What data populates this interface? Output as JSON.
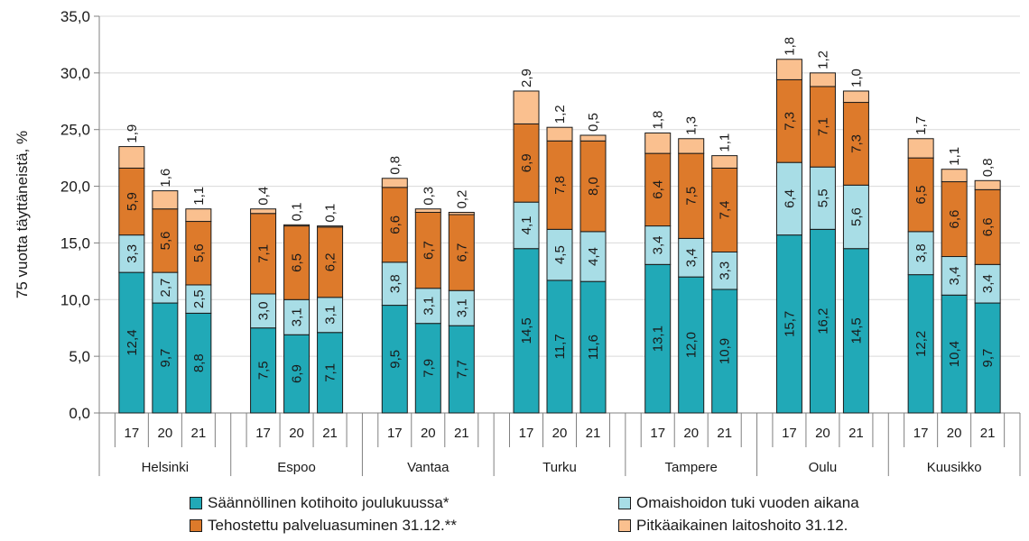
{
  "chart_data": {
    "type": "bar",
    "stacked": true,
    "ylabel": "75 vuotta täyttäneistä, %",
    "ylim": [
      0,
      35
    ],
    "yticks": [
      "0,0",
      "5,0",
      "10,0",
      "15,0",
      "20,0",
      "25,0",
      "30,0",
      "35,0"
    ],
    "grid": "horizontal",
    "legend_position": "bottom",
    "groups": [
      "Helsinki",
      "Espoo",
      "Vantaa",
      "Turku",
      "Tampere",
      "Oulu",
      "Kuusikko"
    ],
    "years": [
      "17",
      "20",
      "21"
    ],
    "series": [
      {
        "name": "Säännöllinen kotihoito joulukuussa*",
        "color": "#21a9b7",
        "values": [
          [
            12.4,
            9.7,
            8.8
          ],
          [
            7.5,
            6.9,
            7.1
          ],
          [
            9.5,
            7.9,
            7.7
          ],
          [
            14.5,
            11.7,
            11.6
          ],
          [
            13.1,
            12.0,
            10.9
          ],
          [
            15.7,
            16.2,
            14.5
          ],
          [
            12.2,
            10.4,
            9.7
          ]
        ],
        "labels": [
          [
            "12,4",
            "9,7",
            "8,8"
          ],
          [
            "7,5",
            "6,9",
            "7,1"
          ],
          [
            "9,5",
            "7,9",
            "7,7"
          ],
          [
            "14,5",
            "11,7",
            "11,6"
          ],
          [
            "13,1",
            "12,0",
            "10,9"
          ],
          [
            "15,7",
            "16,2",
            "14,5"
          ],
          [
            "12,2",
            "10,4",
            "9,7"
          ]
        ]
      },
      {
        "name": "Omaishoidon tuki vuoden aikana",
        "color": "#a8dde6",
        "values": [
          [
            3.3,
            2.7,
            2.5
          ],
          [
            3.0,
            3.1,
            3.1
          ],
          [
            3.8,
            3.1,
            3.1
          ],
          [
            4.1,
            4.5,
            4.4
          ],
          [
            3.4,
            3.4,
            3.3
          ],
          [
            6.4,
            5.5,
            5.6
          ],
          [
            3.8,
            3.4,
            3.4
          ]
        ],
        "labels": [
          [
            "3,3",
            "2,7",
            "2,5"
          ],
          [
            "3,0",
            "3,1",
            "3,1"
          ],
          [
            "3,8",
            "3,1",
            "3,1"
          ],
          [
            "4,1",
            "4,5",
            "4,4"
          ],
          [
            "3,4",
            "3,4",
            "3,3"
          ],
          [
            "6,4",
            "5,5",
            "5,6"
          ],
          [
            "3,8",
            "3,4",
            "3,4"
          ]
        ]
      },
      {
        "name": "Tehostettu palveluasuminen 31.12.**",
        "color": "#dd7a2b",
        "values": [
          [
            5.9,
            5.6,
            5.6
          ],
          [
            7.1,
            6.5,
            6.2
          ],
          [
            6.6,
            6.7,
            6.7
          ],
          [
            6.9,
            7.8,
            8.0
          ],
          [
            6.4,
            7.5,
            7.4
          ],
          [
            7.3,
            7.1,
            7.3
          ],
          [
            6.5,
            6.6,
            6.6
          ]
        ],
        "labels": [
          [
            "5,9",
            "5,6",
            "5,6"
          ],
          [
            "7,1",
            "6,5",
            "6,2"
          ],
          [
            "6,6",
            "6,7",
            "6,7"
          ],
          [
            "6,9",
            "7,8",
            "8,0"
          ],
          [
            "6,4",
            "7,5",
            "7,4"
          ],
          [
            "7,3",
            "7,1",
            "7,3"
          ],
          [
            "6,5",
            "6,6",
            "6,6"
          ]
        ]
      },
      {
        "name": "Pitkäaikainen laitoshoito 31.12.",
        "color": "#fac08f",
        "values": [
          [
            1.9,
            1.6,
            1.1
          ],
          [
            0.4,
            0.1,
            0.1
          ],
          [
            0.8,
            0.3,
            0.2
          ],
          [
            2.9,
            1.2,
            0.5
          ],
          [
            1.8,
            1.3,
            1.1
          ],
          [
            1.8,
            1.2,
            1.0
          ],
          [
            1.7,
            1.1,
            0.8
          ]
        ],
        "labels": [
          [
            "1,9",
            "1,6",
            "1,1"
          ],
          [
            "0,4",
            "0,1",
            "0,1"
          ],
          [
            "0,8",
            "0,3",
            "0,2"
          ],
          [
            "2,9",
            "1,2",
            "0,5"
          ],
          [
            "1,8",
            "1,3",
            "1,1"
          ],
          [
            "1,8",
            "1,2",
            "1,0"
          ],
          [
            "1,7",
            "1,1",
            "0,8"
          ]
        ]
      }
    ]
  }
}
